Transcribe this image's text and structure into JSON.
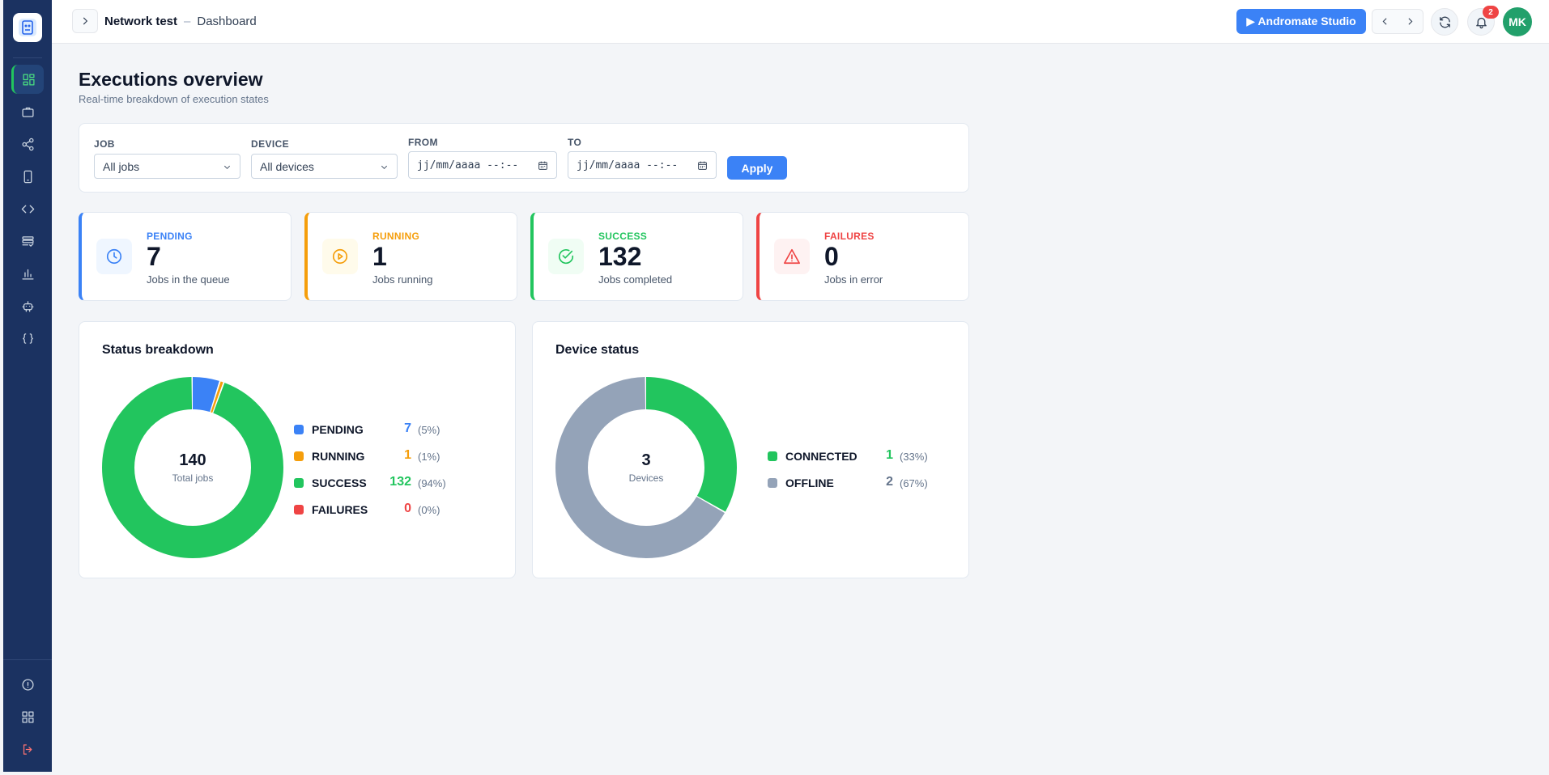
{
  "topbar": {
    "project": "Network test",
    "separator": "–",
    "page": "Dashboard",
    "studio_label": "▶ Andromate Studio",
    "notification_count": "2",
    "user_initials": "MK"
  },
  "header": {
    "title": "Executions overview",
    "subtitle": "Real-time breakdown of execution states"
  },
  "filters": {
    "job_label": "JOB",
    "job_value": "All jobs",
    "device_label": "DEVICE",
    "device_value": "All devices",
    "from_label": "FROM",
    "from_placeholder": "jj/mm/aaaa --:--",
    "to_label": "TO",
    "to_placeholder": "jj/mm/aaaa --:--",
    "apply_label": "Apply"
  },
  "stats": [
    {
      "label": "PENDING",
      "value": "7",
      "desc": "Jobs in the queue",
      "color": "#3b82f6",
      "bg": "#eff6ff",
      "icon": "clock-icon"
    },
    {
      "label": "RUNNING",
      "value": "1",
      "desc": "Jobs running",
      "color": "#f59e0b",
      "bg": "#fffbeb",
      "icon": "play-circle-icon"
    },
    {
      "label": "SUCCESS",
      "value": "132",
      "desc": "Jobs completed",
      "color": "#22c55e",
      "bg": "#f0fdf4",
      "icon": "check-circle-icon"
    },
    {
      "label": "FAILURES",
      "value": "0",
      "desc": "Jobs in error",
      "color": "#ef4444",
      "bg": "#fef2f2",
      "icon": "warning-icon"
    }
  ],
  "status_breakdown": {
    "title": "Status breakdown",
    "total": "140",
    "total_caption": "Total jobs"
  },
  "device_status": {
    "title": "Device status",
    "total": "3",
    "total_caption": "Devices"
  },
  "chart_data": [
    {
      "type": "pie",
      "title": "Status breakdown",
      "categories": [
        "PENDING",
        "RUNNING",
        "SUCCESS",
        "FAILURES"
      ],
      "values": [
        7,
        1,
        132,
        0
      ],
      "percent_labels": [
        "(5%)",
        "(1%)",
        "(94%)",
        "(0%)"
      ],
      "colors": [
        "#3b82f6",
        "#f59e0b",
        "#22c55e",
        "#ef4444"
      ],
      "legend": "right"
    },
    {
      "type": "pie",
      "title": "Device status",
      "categories": [
        "CONNECTED",
        "OFFLINE"
      ],
      "values": [
        1,
        2
      ],
      "percent_labels": [
        "(33%)",
        "(67%)"
      ],
      "colors": [
        "#22c55e",
        "#94a3b8"
      ],
      "legend": "right"
    }
  ]
}
